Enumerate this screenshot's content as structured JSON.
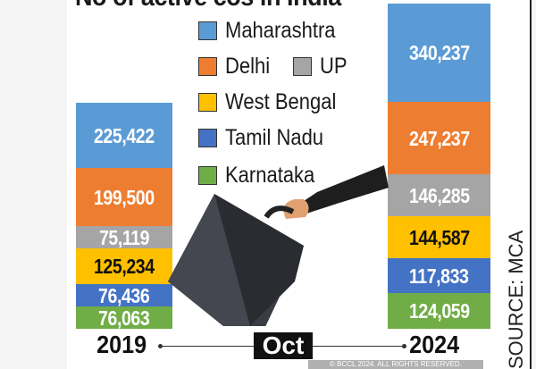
{
  "chart_data": {
    "type": "bar",
    "stacked": true,
    "title": "No of active cos in India",
    "categories": [
      "2019",
      "2024"
    ],
    "separator_label": "Oct",
    "series": [
      {
        "name": "Maharashtra",
        "color": "#5b9bd5",
        "values": [
          225422,
          340237
        ],
        "labels": [
          "225,422",
          "340,237"
        ]
      },
      {
        "name": "Delhi",
        "color": "#ed7d31",
        "values": [
          199500,
          247237
        ],
        "labels": [
          "199,500",
          "247,237"
        ]
      },
      {
        "name": "UP",
        "color": "#a5a5a5",
        "values": [
          75119,
          146285
        ],
        "labels": [
          "75,119",
          "146,285"
        ]
      },
      {
        "name": "West Bengal",
        "color": "#ffc000",
        "values": [
          125234,
          144587
        ],
        "labels": [
          "125,234",
          "144,587"
        ]
      },
      {
        "name": "Tamil Nadu",
        "color": "#4472c4",
        "values": [
          76436,
          117833
        ],
        "labels": [
          "76,436",
          "117,833"
        ]
      },
      {
        "name": "Karnataka",
        "color": "#70ad47",
        "values": [
          76063,
          124059
        ],
        "labels": [
          "76,063",
          "124,059"
        ]
      }
    ],
    "legend_position": "top-center"
  },
  "source": "SOURCE: MCA",
  "copyright": "© BCCL 2024. ALL RIGHTS RESERVED."
}
